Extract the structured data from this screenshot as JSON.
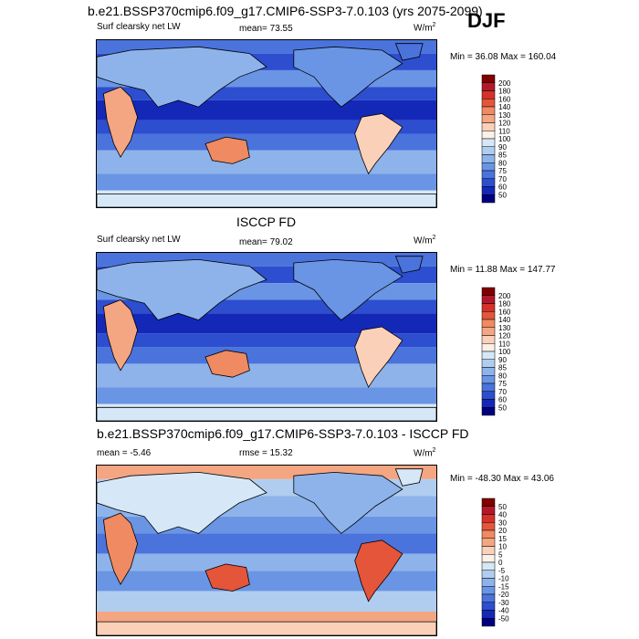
{
  "header": {
    "title": "b.e21.BSSP370cmip6.f09_g17.CMIP6-SSP3-7.0.103 (yrs 2075-2099)",
    "season": "DJF"
  },
  "panels": [
    {
      "id": "model",
      "center_title": "",
      "left_label": "Surf clearsky net LW",
      "mid_label": "mean=  73.55",
      "units": "W/m",
      "units_sup": "2",
      "minmax": "Min = 36.08 Max = 160.04",
      "colorbar_labels": [
        "200",
        "180",
        "160",
        "140",
        "130",
        "120",
        "110",
        "100",
        "90",
        "85",
        "80",
        "75",
        "70",
        "60",
        "50"
      ],
      "colorbar_colors": [
        "#7f0000",
        "#b2182b",
        "#d6302a",
        "#e4553a",
        "#ef8a62",
        "#f4a582",
        "#fbd0b9",
        "#fdf0e6",
        "#d6e8f7",
        "#b0cdf0",
        "#8db3ea",
        "#6a95e4",
        "#4b73dc",
        "#2d4ecf",
        "#1428b8",
        "#00007f"
      ]
    },
    {
      "id": "obs",
      "center_title": "ISCCP FD",
      "left_label": "Surf clearsky net LW",
      "mid_label": "mean=  79.02",
      "units": "W/m",
      "units_sup": "2",
      "minmax": "Min = 11.88 Max = 147.77",
      "colorbar_labels": [
        "200",
        "180",
        "160",
        "140",
        "130",
        "120",
        "110",
        "100",
        "90",
        "85",
        "80",
        "75",
        "70",
        "60",
        "50"
      ],
      "colorbar_colors": [
        "#7f0000",
        "#b2182b",
        "#d6302a",
        "#e4553a",
        "#ef8a62",
        "#f4a582",
        "#fbd0b9",
        "#fdf0e6",
        "#d6e8f7",
        "#b0cdf0",
        "#8db3ea",
        "#6a95e4",
        "#4b73dc",
        "#2d4ecf",
        "#1428b8",
        "#00007f"
      ]
    },
    {
      "id": "diff",
      "center_title": "b.e21.BSSP370cmip6.f09_g17.CMIP6-SSP3-7.0.103 - ISCCP FD",
      "left_label": "mean =  -5.46",
      "mid_label": "rmse =  15.32",
      "units": "W/m",
      "units_sup": "2",
      "minmax": "Min = -48.30 Max = 43.06",
      "colorbar_labels": [
        "50",
        "40",
        "30",
        "20",
        "15",
        "10",
        "5",
        "0",
        "-5",
        "-10",
        "-15",
        "-20",
        "-30",
        "-40",
        "-50"
      ],
      "colorbar_colors": [
        "#7f0000",
        "#b2182b",
        "#d6302a",
        "#e4553a",
        "#ef8a62",
        "#f4a582",
        "#fbd0b9",
        "#fdf0e6",
        "#d6e8f7",
        "#b0cdf0",
        "#8db3ea",
        "#6a95e4",
        "#4b73dc",
        "#2d4ecf",
        "#1428b8",
        "#00007f"
      ]
    }
  ],
  "chart_data": [
    {
      "type": "heatmap",
      "title": "b.e21.BSSP370cmip6.f09_g17.CMIP6-SSP3-7.0.103 (yrs 2075-2099)",
      "variable": "Surf clearsky net LW",
      "units": "W/m2",
      "mean": 73.55,
      "min": 36.08,
      "max": 160.04,
      "levels": [
        50,
        60,
        70,
        75,
        80,
        85,
        90,
        100,
        110,
        120,
        130,
        140,
        160,
        180,
        200
      ]
    },
    {
      "type": "heatmap",
      "title": "ISCCP FD",
      "variable": "Surf clearsky net LW",
      "units": "W/m2",
      "mean": 79.02,
      "min": 11.88,
      "max": 147.77,
      "levels": [
        50,
        60,
        70,
        75,
        80,
        85,
        90,
        100,
        110,
        120,
        130,
        140,
        160,
        180,
        200
      ]
    },
    {
      "type": "heatmap",
      "title": "b.e21.BSSP370cmip6.f09_g17.CMIP6-SSP3-7.0.103 - ISCCP FD",
      "units": "W/m2",
      "mean": -5.46,
      "rmse": 15.32,
      "min": -48.3,
      "max": 43.06,
      "levels": [
        -50,
        -40,
        -30,
        -20,
        -15,
        -10,
        -5,
        0,
        5,
        10,
        15,
        20,
        30,
        40,
        50
      ]
    }
  ]
}
